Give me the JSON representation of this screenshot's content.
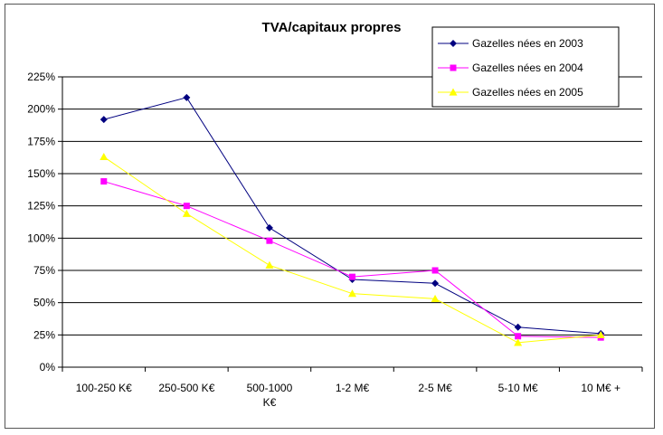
{
  "chart_data": {
    "type": "line",
    "title": "TVA/capitaux propres",
    "categories": [
      "100-250 K€",
      "250-500 K€",
      "500-1000 K€",
      "1-2 M€",
      "2-5 M€",
      "5-10 M€",
      "10 M€ +"
    ],
    "category_lines": [
      [
        "100-250 K€"
      ],
      [
        "250-500 K€"
      ],
      [
        "500-1000",
        "K€"
      ],
      [
        "1-2 M€"
      ],
      [
        "2-5 M€"
      ],
      [
        "5-10 M€"
      ],
      [
        "10 M€ +"
      ]
    ],
    "y_ticks": [
      "0%",
      "25%",
      "50%",
      "75%",
      "100%",
      "125%",
      "150%",
      "175%",
      "200%",
      "225%"
    ],
    "ylim": [
      0,
      225
    ],
    "grid": true,
    "legend_position": "top-right",
    "series": [
      {
        "name": "Gazelles nées en 2003",
        "color": "#000080",
        "marker": "diamond",
        "values": [
          192,
          209,
          108,
          68,
          65,
          31,
          26
        ]
      },
      {
        "name": "Gazelles nées en 2004",
        "color": "#ff00ff",
        "marker": "square",
        "values": [
          144,
          125,
          98,
          70,
          75,
          24,
          23
        ]
      },
      {
        "name": "Gazelles nées en 2005",
        "color": "#ffff00",
        "marker": "triangle",
        "values": [
          163,
          119,
          79,
          57,
          53,
          19,
          25
        ]
      }
    ]
  }
}
